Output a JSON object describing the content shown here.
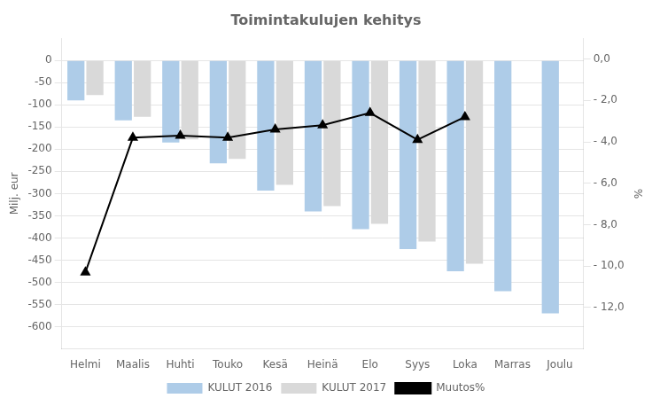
{
  "chart_data": {
    "type": "bar",
    "title": "Toimintakulujen kehitys",
    "categories": [
      "Helmi",
      "Maalis",
      "Huhti",
      "Touko",
      "Kesä",
      "Heinä",
      "Elo",
      "Syys",
      "Loka",
      "Marras",
      "Joulu"
    ],
    "series": [
      {
        "name": "KULUT 2016",
        "color": "#aecce8",
        "values": [
          -90,
          -135,
          -185,
          -232,
          -293,
          -340,
          -380,
          -425,
          -475,
          -520,
          -570
        ]
      },
      {
        "name": "KULUT 2017",
        "color": "#d9d9d9",
        "values": [
          -78,
          -127,
          -178,
          -222,
          -280,
          -328,
          -368,
          -408,
          -458,
          null,
          null
        ]
      },
      {
        "name": "Muutos%",
        "type": "line",
        "color": "#000000",
        "marker": "triangle",
        "axis": "y2",
        "values": [
          -10.3,
          -3.8,
          -3.7,
          -3.8,
          -3.4,
          -3.2,
          -2.6,
          -3.9,
          -2.8,
          null,
          null
        ]
      }
    ],
    "ylabel": "Milj. eur",
    "y2label": "%",
    "ylim": [
      -650,
      50
    ],
    "yticks": [
      0,
      -50,
      -100,
      -150,
      -200,
      -250,
      -300,
      -350,
      -400,
      -450,
      -500,
      -550,
      -600
    ],
    "y2lim": [
      -14,
      1
    ],
    "y2ticks": [
      {
        "value": 0,
        "label": "0,0"
      },
      {
        "value": -2,
        "label": "- 2,0"
      },
      {
        "value": -4,
        "label": "- 4,0"
      },
      {
        "value": -6,
        "label": "- 6,0"
      },
      {
        "value": -8,
        "label": "- 8,0"
      },
      {
        "value": -10,
        "label": "- 10,0"
      },
      {
        "value": -12,
        "label": "- 12,0"
      }
    ],
    "grid": true,
    "legend": "bottom"
  }
}
